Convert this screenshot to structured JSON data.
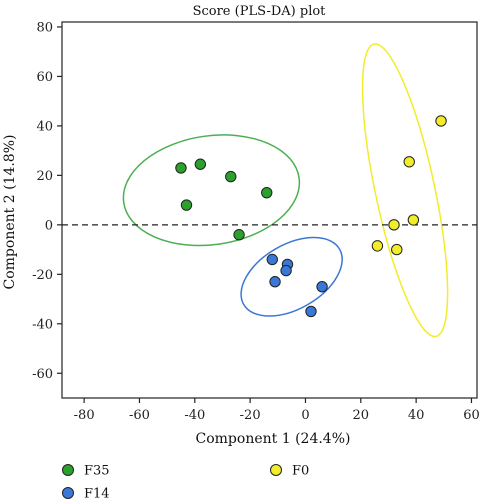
{
  "chart_data": {
    "type": "scatter",
    "title": "Score (PLS-DA) plot",
    "xlabel": "Component  1 (24.4%)",
    "ylabel": "Component  2 (14.8%)",
    "xlim": [
      -88,
      62
    ],
    "ylim": [
      -70,
      82
    ],
    "xticks": [
      -80,
      -60,
      -40,
      -20,
      0,
      20,
      40,
      60
    ],
    "yticks": [
      -60,
      -40,
      -20,
      0,
      20,
      40,
      60,
      80
    ],
    "zero_line": "dashed",
    "legend_position": "bottom",
    "series": [
      {
        "name": "F35",
        "color": "#2ca02c",
        "ellipse_color": "#4caf50",
        "points": [
          [
            -45,
            23
          ],
          [
            -38,
            24.5
          ],
          [
            -27,
            19.5
          ],
          [
            -14,
            13
          ],
          [
            -43,
            8
          ],
          [
            -24,
            -4
          ]
        ],
        "ellipse": {
          "cx": -34,
          "cy": 14,
          "rx": 32,
          "ry": 22,
          "angle_deg": -8
        }
      },
      {
        "name": "F14",
        "color": "#3a78d8",
        "ellipse_color": "#3a78d8",
        "points": [
          [
            -12,
            -14
          ],
          [
            -6.5,
            -16
          ],
          [
            -7,
            -18.5
          ],
          [
            -11,
            -23
          ],
          [
            6,
            -25
          ],
          [
            2,
            -35
          ]
        ],
        "ellipse": {
          "cx": -5,
          "cy": -21,
          "rx": 20,
          "ry": 13,
          "angle_deg": -30
        }
      },
      {
        "name": "F0",
        "color": "#f2ec2a",
        "ellipse_color": "#f2ec2a",
        "points": [
          [
            49,
            42
          ],
          [
            37.5,
            25.5
          ],
          [
            39,
            2
          ],
          [
            32,
            0
          ],
          [
            26,
            -8.5
          ],
          [
            33,
            -10
          ]
        ],
        "ellipse": {
          "cx": 36,
          "cy": 14,
          "rx": 54,
          "ry": 12,
          "angle_deg": 78
        }
      }
    ]
  }
}
